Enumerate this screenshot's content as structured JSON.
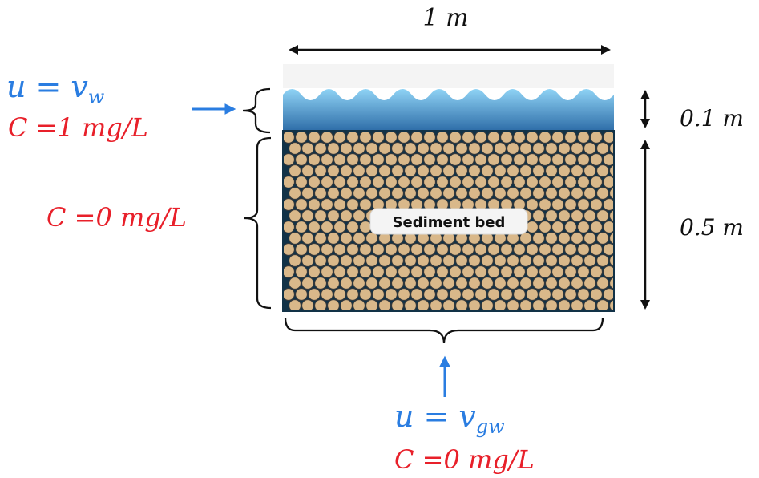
{
  "width_label": "1 m",
  "water_depth_label": "0.1 m",
  "sediment_depth_label": "0.5 m",
  "sediment_badge": "Sediment bed",
  "top_boundary": {
    "u_symbol": "u",
    "equals": "=",
    "velocity_symbol": "v",
    "velocity_subscript": "w",
    "concentration": "C =1 mg/L"
  },
  "initial_condition": {
    "concentration": "C =0 mg/L"
  },
  "bottom_boundary": {
    "u_symbol": "u",
    "equals": "=",
    "velocity_symbol": "v",
    "velocity_subscript": "gw",
    "concentration": "C =0 mg/L"
  },
  "colors": {
    "red_text": "#e8202a",
    "blue_text": "#2a7de1",
    "water_top": "#8fd3f5",
    "water_bottom": "#2e6da8",
    "grain_fill": "#d9b88a",
    "grain_stroke": "#3a3a3a",
    "gap_color": "#123247"
  }
}
